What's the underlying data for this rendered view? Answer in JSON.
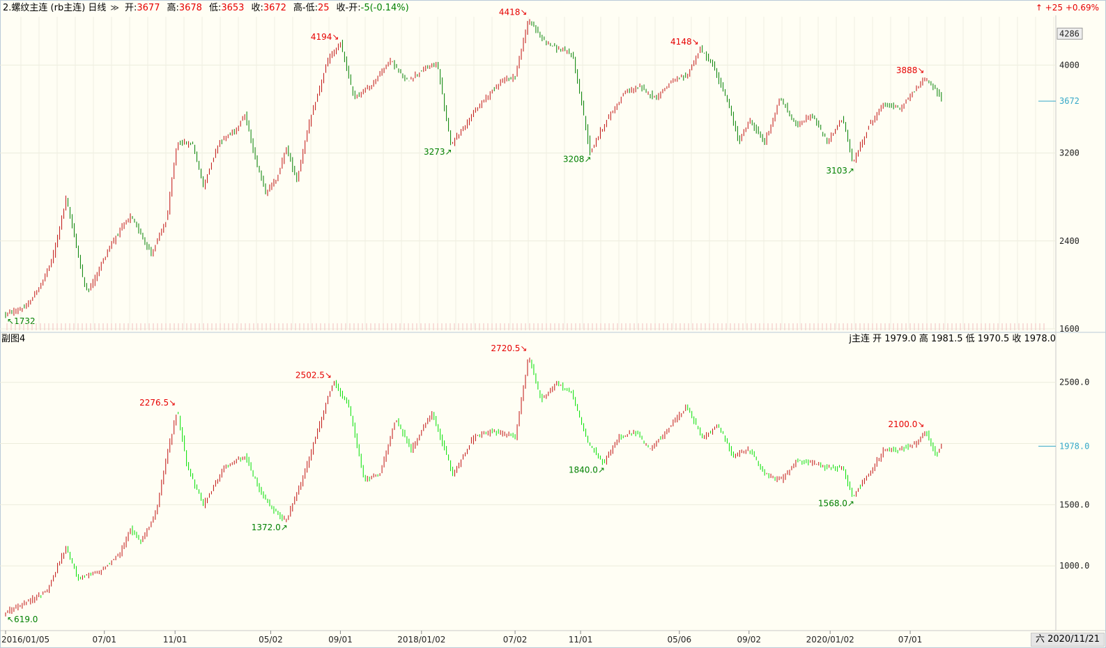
{
  "header": {
    "title": "2.螺纹主连 (rb主连) 日线",
    "open_label": "开:",
    "open": "3677",
    "high_label": "高:",
    "high": "3678",
    "low_label": "低:",
    "low": "3653",
    "close_label": "收:",
    "close": "3672",
    "hl_label": "高-低:",
    "hl": "25",
    "co_label": "收-开:",
    "co": "-5(-0.14%)",
    "right_change": "↑ +25  +0.69%"
  },
  "sub": {
    "title": "副图4",
    "info": "j主连 开 1979.0 高 1981.5 低 1970.5 收 1978.0"
  },
  "date_badge": "六 2020/11/21",
  "colors": {
    "up": "#e60000",
    "down": "#008000",
    "sub_line": "#00e000",
    "current": "#35a8c8"
  },
  "chart_data": [
    {
      "type": "candlestick",
      "title": "2.螺纹主连 (rb主连) 日线",
      "ylim": [
        1600,
        4440
      ],
      "yticks": [
        1600,
        2400,
        3200,
        4000
      ],
      "ytick_labels": [
        "1600",
        "2400",
        "3200",
        "4000"
      ],
      "max_label": "4286",
      "current_value": 3672,
      "current_label": "3672",
      "points": [
        {
          "t": 0,
          "v": 1732
        },
        {
          "t": 0.02,
          "v": 1800
        },
        {
          "t": 0.035,
          "v": 2020
        },
        {
          "t": 0.045,
          "v": 2240
        },
        {
          "t": 0.058,
          "v": 2780
        },
        {
          "t": 0.065,
          "v": 2500
        },
        {
          "t": 0.075,
          "v": 2020
        },
        {
          "t": 0.08,
          "v": 1950
        },
        {
          "t": 0.09,
          "v": 2150
        },
        {
          "t": 0.1,
          "v": 2350
        },
        {
          "t": 0.11,
          "v": 2500
        },
        {
          "t": 0.12,
          "v": 2620
        },
        {
          "t": 0.13,
          "v": 2470
        },
        {
          "t": 0.14,
          "v": 2280
        },
        {
          "t": 0.155,
          "v": 2600
        },
        {
          "t": 0.165,
          "v": 3300
        },
        {
          "t": 0.18,
          "v": 3280
        },
        {
          "t": 0.19,
          "v": 2900
        },
        {
          "t": 0.205,
          "v": 3300
        },
        {
          "t": 0.22,
          "v": 3400
        },
        {
          "t": 0.23,
          "v": 3550
        },
        {
          "t": 0.24,
          "v": 3150
        },
        {
          "t": 0.25,
          "v": 2850
        },
        {
          "t": 0.26,
          "v": 2950
        },
        {
          "t": 0.27,
          "v": 3250
        },
        {
          "t": 0.28,
          "v": 2950
        },
        {
          "t": 0.29,
          "v": 3400
        },
        {
          "t": 0.31,
          "v": 4050
        },
        {
          "t": 0.322,
          "v": 4194
        },
        {
          "t": 0.335,
          "v": 3700
        },
        {
          "t": 0.35,
          "v": 3800
        },
        {
          "t": 0.37,
          "v": 4050
        },
        {
          "t": 0.385,
          "v": 3850
        },
        {
          "t": 0.4,
          "v": 3950
        },
        {
          "t": 0.415,
          "v": 4020
        },
        {
          "t": 0.428,
          "v": 3273
        },
        {
          "t": 0.445,
          "v": 3500
        },
        {
          "t": 0.46,
          "v": 3680
        },
        {
          "t": 0.475,
          "v": 3850
        },
        {
          "t": 0.49,
          "v": 3900
        },
        {
          "t": 0.503,
          "v": 4418
        },
        {
          "t": 0.515,
          "v": 4250
        },
        {
          "t": 0.53,
          "v": 4150
        },
        {
          "t": 0.545,
          "v": 4100
        },
        {
          "t": 0.555,
          "v": 3600
        },
        {
          "t": 0.562,
          "v": 3208
        },
        {
          "t": 0.575,
          "v": 3450
        },
        {
          "t": 0.595,
          "v": 3750
        },
        {
          "t": 0.61,
          "v": 3800
        },
        {
          "t": 0.625,
          "v": 3700
        },
        {
          "t": 0.64,
          "v": 3850
        },
        {
          "t": 0.655,
          "v": 3900
        },
        {
          "t": 0.668,
          "v": 4148
        },
        {
          "t": 0.68,
          "v": 4000
        },
        {
          "t": 0.695,
          "v": 3650
        },
        {
          "t": 0.705,
          "v": 3300
        },
        {
          "t": 0.715,
          "v": 3500
        },
        {
          "t": 0.73,
          "v": 3300
        },
        {
          "t": 0.745,
          "v": 3700
        },
        {
          "t": 0.76,
          "v": 3450
        },
        {
          "t": 0.775,
          "v": 3550
        },
        {
          "t": 0.79,
          "v": 3300
        },
        {
          "t": 0.805,
          "v": 3520
        },
        {
          "t": 0.815,
          "v": 3103
        },
        {
          "t": 0.83,
          "v": 3450
        },
        {
          "t": 0.845,
          "v": 3650
        },
        {
          "t": 0.86,
          "v": 3600
        },
        {
          "t": 0.875,
          "v": 3780
        },
        {
          "t": 0.885,
          "v": 3888
        },
        {
          "t": 0.9,
          "v": 3700
        }
      ],
      "annotations": [
        {
          "t": 0.0,
          "v": 1732,
          "label": "↖1732",
          "kind": "low"
        },
        {
          "t": 0.322,
          "v": 4194,
          "label": "4194↘",
          "kind": "high"
        },
        {
          "t": 0.428,
          "v": 3273,
          "label": "3273↗",
          "kind": "low"
        },
        {
          "t": 0.503,
          "v": 4418,
          "label": "4418↘",
          "kind": "high"
        },
        {
          "t": 0.562,
          "v": 3208,
          "label": "3208↗",
          "kind": "low"
        },
        {
          "t": 0.668,
          "v": 4148,
          "label": "4148↘",
          "kind": "high"
        },
        {
          "t": 0.815,
          "v": 3103,
          "label": "3103↗",
          "kind": "low"
        },
        {
          "t": 0.885,
          "v": 3888,
          "label": "3888↘",
          "kind": "high"
        }
      ]
    },
    {
      "type": "candlestick",
      "title": "副图4",
      "ylim": [
        500,
        2800
      ],
      "yticks": [
        1000,
        1500,
        2000,
        2500
      ],
      "ytick_labels": [
        "1000.0",
        "1500.0",
        "",
        "2500.0"
      ],
      "current_value": 1978,
      "current_label": "1978.0",
      "points": [
        {
          "t": 0,
          "v": 619
        },
        {
          "t": 0.02,
          "v": 700
        },
        {
          "t": 0.04,
          "v": 800
        },
        {
          "t": 0.058,
          "v": 1150
        },
        {
          "t": 0.07,
          "v": 900
        },
        {
          "t": 0.09,
          "v": 950
        },
        {
          "t": 0.11,
          "v": 1100
        },
        {
          "t": 0.12,
          "v": 1300
        },
        {
          "t": 0.13,
          "v": 1200
        },
        {
          "t": 0.145,
          "v": 1450
        },
        {
          "t": 0.155,
          "v": 1900
        },
        {
          "t": 0.165,
          "v": 2276.5
        },
        {
          "t": 0.175,
          "v": 1800
        },
        {
          "t": 0.19,
          "v": 1500
        },
        {
          "t": 0.21,
          "v": 1800
        },
        {
          "t": 0.23,
          "v": 1900
        },
        {
          "t": 0.245,
          "v": 1600
        },
        {
          "t": 0.258,
          "v": 1450
        },
        {
          "t": 0.27,
          "v": 1372
        },
        {
          "t": 0.285,
          "v": 1700
        },
        {
          "t": 0.3,
          "v": 2100
        },
        {
          "t": 0.315,
          "v": 2502.5
        },
        {
          "t": 0.33,
          "v": 2300
        },
        {
          "t": 0.345,
          "v": 1700
        },
        {
          "t": 0.36,
          "v": 1750
        },
        {
          "t": 0.375,
          "v": 2200
        },
        {
          "t": 0.39,
          "v": 1950
        },
        {
          "t": 0.41,
          "v": 2250
        },
        {
          "t": 0.43,
          "v": 1750
        },
        {
          "t": 0.45,
          "v": 2050
        },
        {
          "t": 0.47,
          "v": 2100
        },
        {
          "t": 0.49,
          "v": 2050
        },
        {
          "t": 0.503,
          "v": 2720.5
        },
        {
          "t": 0.515,
          "v": 2350
        },
        {
          "t": 0.53,
          "v": 2500
        },
        {
          "t": 0.545,
          "v": 2400
        },
        {
          "t": 0.56,
          "v": 2000
        },
        {
          "t": 0.575,
          "v": 1840
        },
        {
          "t": 0.59,
          "v": 2050
        },
        {
          "t": 0.605,
          "v": 2100
        },
        {
          "t": 0.62,
          "v": 1950
        },
        {
          "t": 0.64,
          "v": 2150
        },
        {
          "t": 0.655,
          "v": 2300
        },
        {
          "t": 0.67,
          "v": 2050
        },
        {
          "t": 0.685,
          "v": 2150
        },
        {
          "t": 0.7,
          "v": 1900
        },
        {
          "t": 0.715,
          "v": 1950
        },
        {
          "t": 0.73,
          "v": 1750
        },
        {
          "t": 0.745,
          "v": 1700
        },
        {
          "t": 0.76,
          "v": 1850
        },
        {
          "t": 0.775,
          "v": 1850
        },
        {
          "t": 0.79,
          "v": 1800
        },
        {
          "t": 0.805,
          "v": 1800
        },
        {
          "t": 0.815,
          "v": 1568
        },
        {
          "t": 0.83,
          "v": 1750
        },
        {
          "t": 0.845,
          "v": 1950
        },
        {
          "t": 0.86,
          "v": 1950
        },
        {
          "t": 0.875,
          "v": 2000
        },
        {
          "t": 0.885,
          "v": 2100
        },
        {
          "t": 0.895,
          "v": 1900
        },
        {
          "t": 0.9,
          "v": 1978
        }
      ],
      "annotations": [
        {
          "t": 0.0,
          "v": 619,
          "label": "↖619.0",
          "kind": "low"
        },
        {
          "t": 0.165,
          "v": 2276.5,
          "label": "2276.5↘",
          "kind": "high"
        },
        {
          "t": 0.27,
          "v": 1372,
          "label": "1372.0↗",
          "kind": "low"
        },
        {
          "t": 0.315,
          "v": 2502.5,
          "label": "2502.5↘",
          "kind": "high"
        },
        {
          "t": 0.503,
          "v": 2720.5,
          "label": "2720.5↘",
          "kind": "high"
        },
        {
          "t": 0.575,
          "v": 1840,
          "label": "1840.0↗",
          "kind": "low"
        },
        {
          "t": 0.815,
          "v": 1568,
          "label": "1568.0↗",
          "kind": "low"
        },
        {
          "t": 0.885,
          "v": 2100,
          "label": "2100.0↘",
          "kind": "high"
        }
      ]
    }
  ],
  "x_axis": {
    "dates": [
      {
        "t": 0.0,
        "label": "2016/01/05"
      },
      {
        "t": 0.095,
        "label": "07/01"
      },
      {
        "t": 0.163,
        "label": "11/01"
      },
      {
        "t": 0.255,
        "label": "05/02"
      },
      {
        "t": 0.322,
        "label": "09/01"
      },
      {
        "t": 0.4,
        "label": "2018/01/02"
      },
      {
        "t": 0.49,
        "label": "07/02"
      },
      {
        "t": 0.553,
        "label": "11/01"
      },
      {
        "t": 0.648,
        "label": "05/06"
      },
      {
        "t": 0.715,
        "label": "09/02"
      },
      {
        "t": 0.793,
        "label": "2020/01/02"
      },
      {
        "t": 0.87,
        "label": "07/01"
      }
    ]
  }
}
